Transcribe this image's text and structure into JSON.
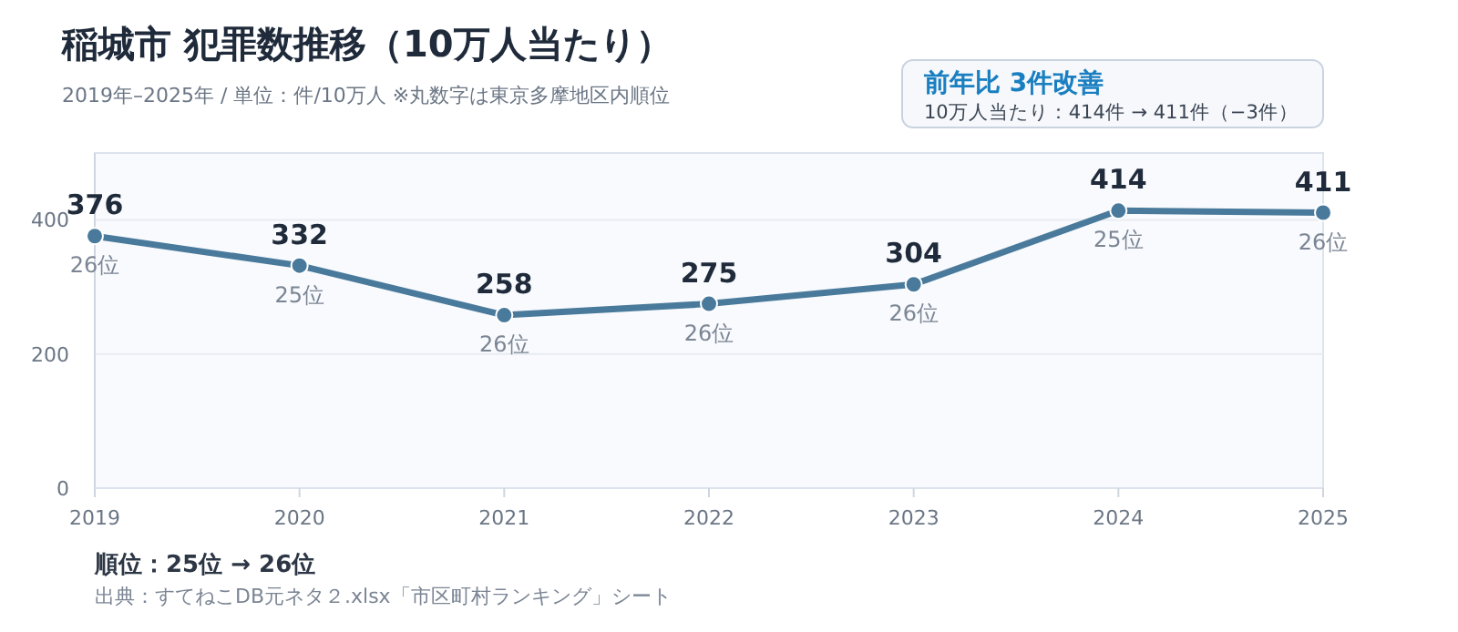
{
  "chart_data": {
    "type": "line",
    "title": "稲城市 犯罪数推移（10万人当たり）",
    "subtitle": "2019年–2025年 / 単位：件/10万人 ※丸数字は東京多摩地区内順位",
    "x": [
      2019,
      2020,
      2021,
      2022,
      2023,
      2024,
      2025
    ],
    "series": [
      {
        "color": "#4a7a9b",
        "values": [
          376,
          332,
          258,
          275,
          304,
          414,
          411
        ]
      }
    ],
    "xlim": [
      2019,
      2025
    ],
    "xticks": [
      2019,
      2020,
      2021,
      2022,
      2023,
      2024,
      2025
    ],
    "ylim": [
      0,
      500
    ],
    "yticks": [
      0,
      200,
      400
    ],
    "grid": "y",
    "marker": "circle",
    "line_style": "solid",
    "data_labels": true,
    "annotations": [
      "前年比 3件改善",
      "10万人当たり：414件 → 411件（−3件）",
      "順位：25位 → 26位",
      "出典：すてねこDB元ネタ２.xlsx「市区町村ランキング」シート",
      {
        "text": "26位",
        "x": 2019,
        "y": 376
      },
      {
        "text": "25位",
        "x": 2020,
        "y": 332
      },
      {
        "text": "26位",
        "x": 2021,
        "y": 258
      },
      {
        "text": "26位",
        "x": 2022,
        "y": 275
      },
      {
        "text": "26位",
        "x": 2023,
        "y": 304
      },
      {
        "text": "25位",
        "x": 2024,
        "y": 414
      },
      {
        "text": "26位",
        "x": 2025,
        "y": 411
      }
    ]
  }
}
